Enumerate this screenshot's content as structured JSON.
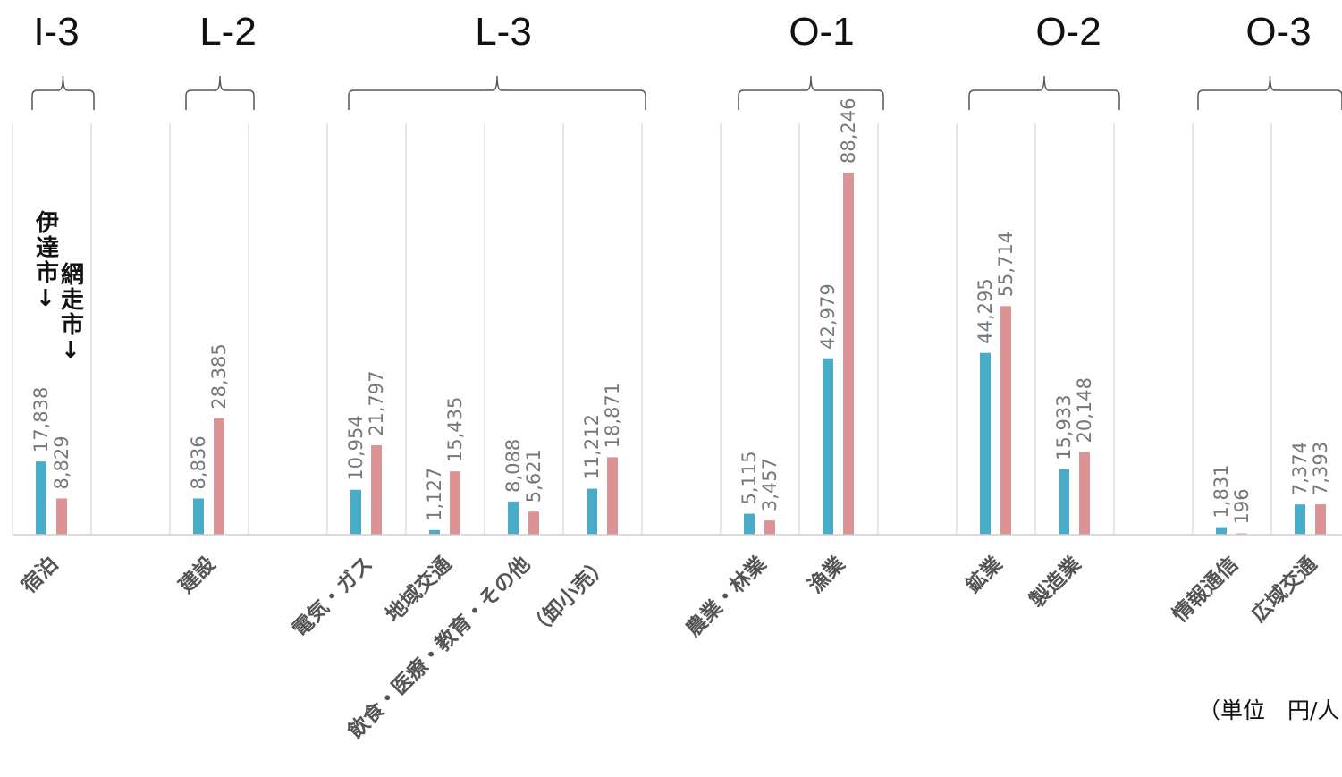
{
  "chart_data": {
    "type": "bar",
    "unit_label": "（単位　円/人",
    "series": [
      {
        "name": "伊達市",
        "legend_text": "伊達市↓",
        "color": "#4aacc6"
      },
      {
        "name": "網走市",
        "legend_text": "網走市↓",
        "color": "#dc9394"
      }
    ],
    "groups": [
      {
        "label": "I-3",
        "categories": [
          {
            "label": "宿泊",
            "values": [
              17838,
              8829
            ],
            "value_labels": [
              "17,838",
              "8,829"
            ]
          }
        ]
      },
      {
        "label": "L-2",
        "categories": [
          {
            "label": "建設",
            "values": [
              8836,
              28385
            ],
            "value_labels": [
              "8,836",
              "28,385"
            ]
          }
        ]
      },
      {
        "label": "L-3",
        "categories": [
          {
            "label": "電気・ガス",
            "values": [
              10954,
              21797
            ],
            "value_labels": [
              "10,954",
              "21,797"
            ]
          },
          {
            "label": "地域交通",
            "values": [
              1127,
              15435
            ],
            "value_labels": [
              "1,127",
              "15,435"
            ]
          },
          {
            "label": "飲食・医療・教育・その他",
            "values": [
              8088,
              5621
            ],
            "value_labels": [
              "8,088",
              "5,621"
            ]
          },
          {
            "label": "（卸小売）",
            "values": [
              11212,
              18871
            ],
            "value_labels": [
              "11,212",
              "18,871"
            ]
          }
        ]
      },
      {
        "label": "O-1",
        "categories": [
          {
            "label": "農業・林業",
            "values": [
              5115,
              3457
            ],
            "value_labels": [
              "5,115",
              "3,457"
            ]
          },
          {
            "label": "漁業",
            "values": [
              42979,
              88246
            ],
            "value_labels": [
              "42,979",
              "88,246"
            ]
          }
        ]
      },
      {
        "label": "O-2",
        "categories": [
          {
            "label": "鉱業",
            "values": [
              44295,
              55714
            ],
            "value_labels": [
              "44,295",
              "55,714"
            ]
          },
          {
            "label": "製造業",
            "values": [
              15933,
              20148
            ],
            "value_labels": [
              "15,933",
              "20,148"
            ]
          }
        ]
      },
      {
        "label": "O-3",
        "categories": [
          {
            "label": "情報通信",
            "values": [
              1831,
              196
            ],
            "value_labels": [
              "1,831",
              "196"
            ]
          },
          {
            "label": "広域交通",
            "values": [
              7374,
              7393
            ],
            "value_labels": [
              "7,374",
              "7,393"
            ]
          }
        ]
      }
    ]
  }
}
